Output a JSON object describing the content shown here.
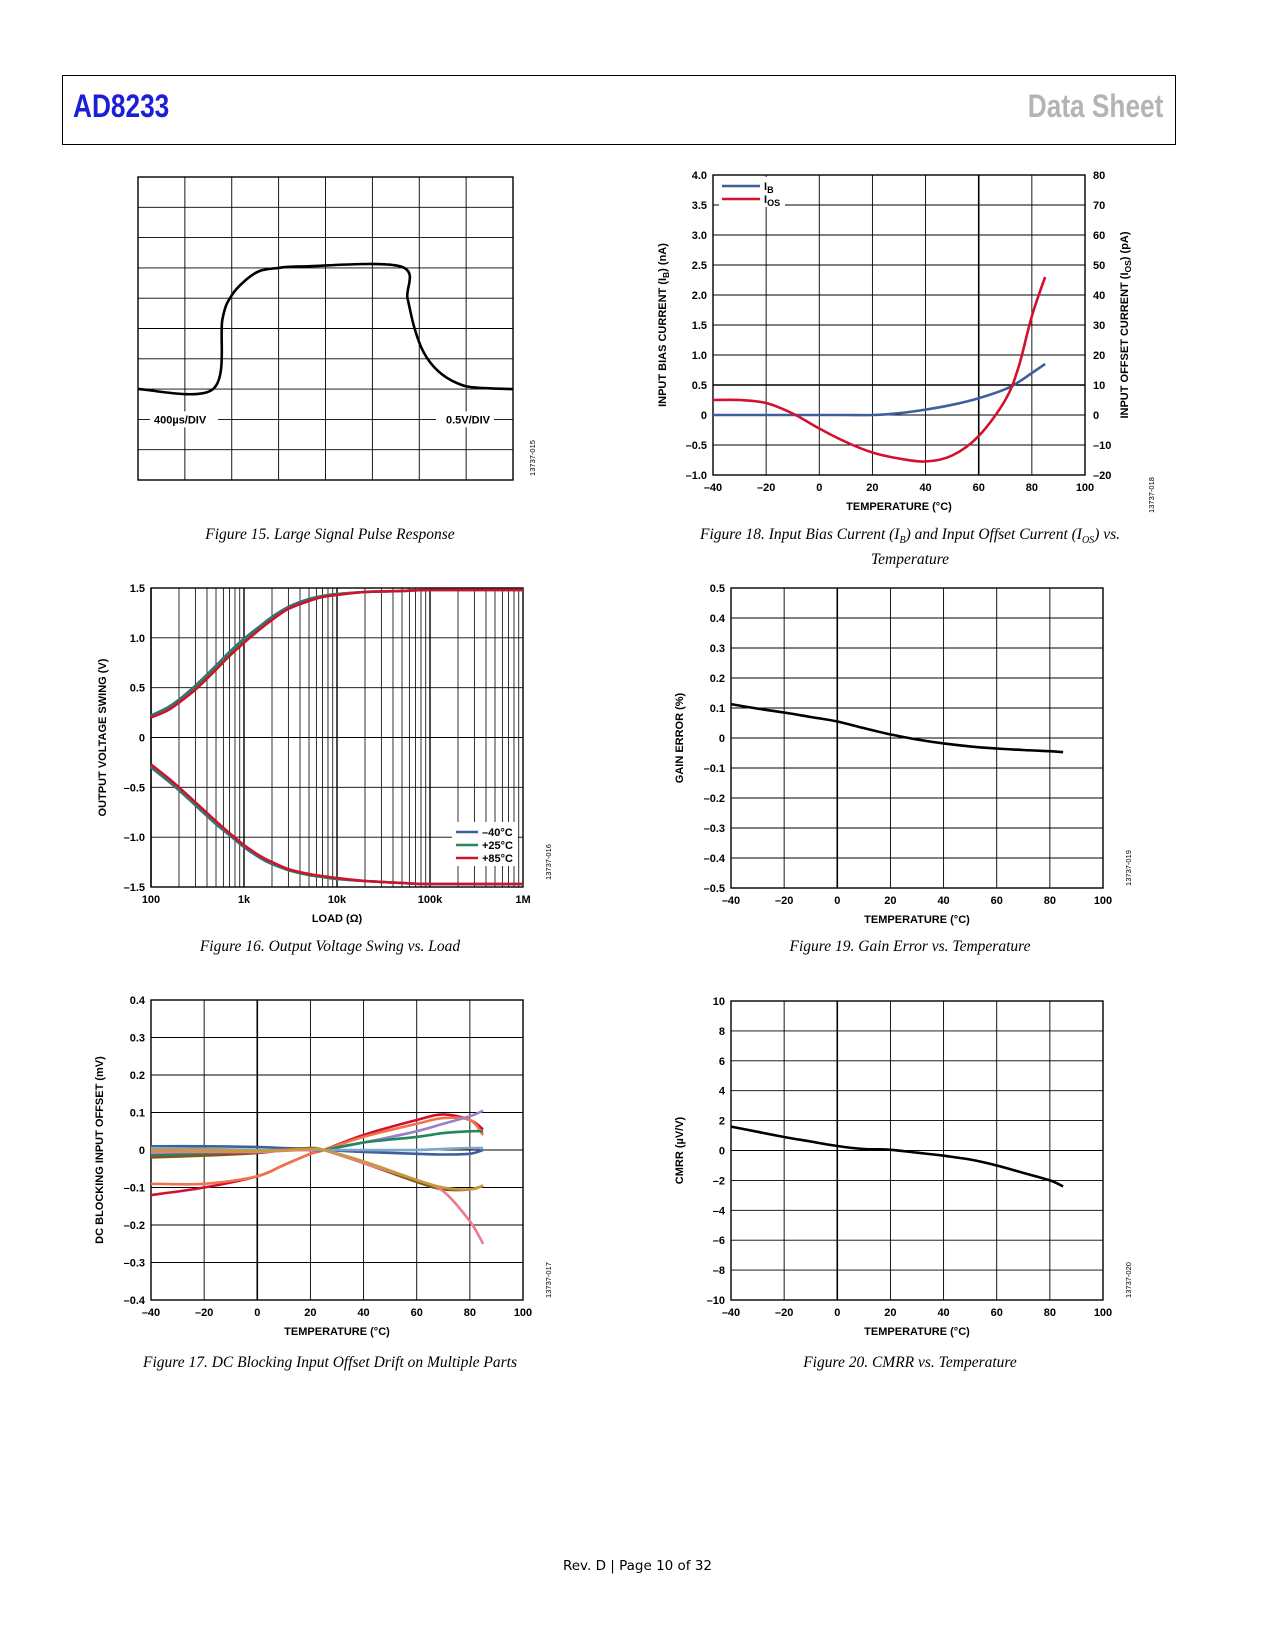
{
  "header": {
    "product": "AD8233",
    "doc_type": "Data Sheet"
  },
  "footer": {
    "text": "Rev. D | Page 10 of 32"
  },
  "figures": {
    "fig15": {
      "caption": "Figure 15. Large Signal Pulse Response",
      "label_time": "400µs/DIV",
      "label_volt": "0.5V/DIV",
      "code": "13737-015"
    },
    "fig16": {
      "caption": "Figure 16. Output Voltage Swing vs. Load",
      "code": "13737-016"
    },
    "fig17": {
      "caption": "Figure 17. DC Blocking Input Offset Drift on Multiple Parts",
      "code": "13737-017"
    },
    "fig18": {
      "caption_a": "Figure 18. Input Bias Current (I",
      "caption_b": "B",
      "caption_c": ") and Input Offset Current (I",
      "caption_d": "OS",
      "caption_e": ") vs.",
      "caption_line2": "Temperature",
      "code": "13737-018"
    },
    "fig19": {
      "caption": "Figure 19. Gain Error vs. Temperature",
      "code": "13737-019"
    },
    "fig20": {
      "caption": "Figure 20. CMRR vs. Temperature",
      "code": "13737-020"
    }
  },
  "chart_data": [
    {
      "id": "fig15",
      "type": "line",
      "title": "",
      "grid": true,
      "x_divisions": 8,
      "y_divisions": 10,
      "x_unit_per_div": "400µs/DIV",
      "y_unit_per_div": "0.5V/DIV",
      "series": [
        {
          "x": [
            0,
            1.6,
            1.8,
            2.0,
            2.3,
            2.6,
            3.0,
            3.5,
            5.6,
            5.75,
            5.9,
            6.1,
            6.4,
            6.8,
            7.2,
            8.0
          ],
          "y": [
            3.0,
            3.0,
            5.3,
            6.1,
            6.6,
            6.9,
            7.0,
            7.05,
            7.05,
            6.0,
            5.0,
            4.2,
            3.6,
            3.2,
            3.05,
            3.0
          ]
        }
      ]
    },
    {
      "id": "fig16",
      "type": "line",
      "xlabel": "LOAD (Ω)",
      "ylabel": "OUTPUT VOLTAGE SWING (V)",
      "xscale": "log",
      "xlim": [
        100,
        1000000
      ],
      "ylim": [
        -1.5,
        1.5
      ],
      "xticks": [
        100,
        1000,
        10000,
        100000,
        1000000
      ],
      "xtick_labels": [
        "100",
        "1k",
        "10k",
        "100k",
        "1M"
      ],
      "yticks": [
        -1.5,
        -1.0,
        -0.5,
        0,
        0.5,
        1.0,
        1.5
      ],
      "ytick_labels": [
        "–1.5",
        "–1.0",
        "–0.5",
        "0",
        "0.5",
        "1.0",
        "1.5"
      ],
      "legend_position": "bottom-right",
      "x": [
        100,
        150,
        200,
        300,
        500,
        700,
        1000,
        1500,
        2000,
        3000,
        5000,
        7000,
        10000,
        20000,
        50000,
        100000,
        1000000
      ],
      "series": [
        {
          "name": "–40°C",
          "color": "#3e5f9b",
          "upper": [
            0.22,
            0.3,
            0.38,
            0.52,
            0.72,
            0.86,
            0.99,
            1.12,
            1.21,
            1.31,
            1.39,
            1.42,
            1.44,
            1.46,
            1.47,
            1.48,
            1.48
          ],
          "lower": [
            -0.3,
            -0.43,
            -0.53,
            -0.68,
            -0.87,
            -0.98,
            -1.1,
            -1.21,
            -1.27,
            -1.33,
            -1.38,
            -1.4,
            -1.42,
            -1.44,
            -1.46,
            -1.47,
            -1.47
          ]
        },
        {
          "name": "+25°C",
          "color": "#23875a",
          "upper": [
            0.21,
            0.29,
            0.37,
            0.51,
            0.71,
            0.85,
            0.98,
            1.11,
            1.2,
            1.3,
            1.38,
            1.42,
            1.44,
            1.46,
            1.47,
            1.48,
            1.48
          ],
          "lower": [
            -0.29,
            -0.42,
            -0.52,
            -0.67,
            -0.86,
            -0.97,
            -1.09,
            -1.2,
            -1.26,
            -1.33,
            -1.38,
            -1.4,
            -1.42,
            -1.44,
            -1.46,
            -1.47,
            -1.47
          ]
        },
        {
          "name": "+85°C",
          "color": "#d2112e",
          "upper": [
            0.2,
            0.27,
            0.35,
            0.48,
            0.68,
            0.82,
            0.95,
            1.09,
            1.18,
            1.29,
            1.37,
            1.41,
            1.43,
            1.46,
            1.47,
            1.48,
            1.48
          ],
          "lower": [
            -0.27,
            -0.4,
            -0.5,
            -0.65,
            -0.84,
            -0.96,
            -1.08,
            -1.19,
            -1.25,
            -1.32,
            -1.37,
            -1.39,
            -1.41,
            -1.44,
            -1.46,
            -1.47,
            -1.47
          ]
        }
      ]
    },
    {
      "id": "fig17",
      "type": "line",
      "xlabel": "TEMPERATURE (°C)",
      "ylabel": "DC BLOCKING INPUT OFFSET (mV)",
      "xlim": [
        -40,
        100
      ],
      "ylim": [
        -0.4,
        0.4
      ],
      "xticks": [
        -40,
        -20,
        0,
        20,
        40,
        60,
        80,
        100
      ],
      "xtick_labels": [
        "–40",
        "–20",
        "0",
        "20",
        "40",
        "60",
        "80",
        "100"
      ],
      "yticks": [
        -0.4,
        -0.3,
        -0.2,
        -0.1,
        0,
        0.1,
        0.2,
        0.3,
        0.4
      ],
      "ytick_labels": [
        "–0.4",
        "–0.3",
        "–0.2",
        "–0.1",
        "0",
        "0.1",
        "0.2",
        "0.3",
        "0.4"
      ],
      "x": [
        -40,
        -20,
        0,
        10,
        20,
        25,
        40,
        60,
        70,
        80,
        85
      ],
      "series": [
        {
          "color": "#d2112e",
          "values": [
            -0.12,
            -0.1,
            -0.07,
            -0.04,
            -0.01,
            0.0,
            0.04,
            0.08,
            0.095,
            0.08,
            0.055
          ]
        },
        {
          "color": "#f2734b",
          "values": [
            -0.09,
            -0.09,
            -0.07,
            -0.04,
            -0.01,
            0.0,
            0.035,
            0.07,
            0.085,
            0.08,
            0.04
          ]
        },
        {
          "color": "#9d7ec9",
          "values": [
            -0.01,
            -0.01,
            -0.005,
            0.0,
            0.0,
            0.0,
            0.02,
            0.05,
            0.07,
            0.09,
            0.105
          ]
        },
        {
          "color": "#23875a",
          "values": [
            -0.015,
            -0.01,
            -0.005,
            0.0,
            0.0,
            0.0,
            0.02,
            0.035,
            0.045,
            0.05,
            0.05
          ]
        },
        {
          "color": "#3e5f9b",
          "values": [
            0.01,
            0.01,
            0.008,
            0.005,
            0.003,
            0.0,
            -0.005,
            -0.01,
            -0.012,
            -0.01,
            0.0
          ]
        },
        {
          "color": "#7ba7c9",
          "values": [
            0.005,
            0.003,
            0.0,
            0.0,
            0.0,
            0.0,
            0.0,
            0.0,
            0.003,
            0.005,
            0.005
          ]
        },
        {
          "color": "#7a5a1e",
          "values": [
            -0.02,
            -0.015,
            -0.008,
            0.0,
            0.005,
            0.0,
            -0.035,
            -0.085,
            -0.105,
            -0.105,
            -0.095
          ]
        },
        {
          "color": "#f07a8c",
          "values": [
            -0.005,
            -0.005,
            -0.005,
            -0.002,
            0.0,
            0.0,
            -0.035,
            -0.08,
            -0.11,
            -0.19,
            -0.25
          ]
        },
        {
          "color": "#c49a3c",
          "values": [
            0.0,
            0.0,
            -0.002,
            0.0,
            0.003,
            0.0,
            -0.03,
            -0.08,
            -0.1,
            -0.105,
            -0.095
          ]
        }
      ]
    },
    {
      "id": "fig18",
      "type": "line",
      "xlabel": "TEMPERATURE (°C)",
      "ylabel": "INPUT BIAS CURRENT (IB) (nA)",
      "ylabel_right": "INPUT OFFSET CURRENT (IOS) (pA)",
      "xlim": [
        -40,
        100
      ],
      "ylim": [
        -1.0,
        4.0
      ],
      "ylim_right": [
        -20,
        80
      ],
      "xticks": [
        -40,
        -20,
        0,
        20,
        40,
        60,
        80,
        100
      ],
      "xtick_labels": [
        "–40",
        "–20",
        "0",
        "20",
        "40",
        "60",
        "80",
        "100"
      ],
      "yticks": [
        -1.0,
        -0.5,
        0,
        0.5,
        1.0,
        1.5,
        2.0,
        2.5,
        3.0,
        3.5,
        4.0
      ],
      "ytick_labels": [
        "–1.0",
        "–0.5",
        "0",
        "0.5",
        "1.0",
        "1.5",
        "2.0",
        "2.5",
        "3.0",
        "3.5",
        "4.0"
      ],
      "yticks_right": [
        -20,
        -10,
        0,
        10,
        20,
        30,
        40,
        50,
        60,
        70,
        80
      ],
      "ytick_labels_right": [
        "–20",
        "–10",
        "0",
        "10",
        "20",
        "30",
        "40",
        "50",
        "60",
        "70",
        "80"
      ],
      "legend_position": "top-left",
      "x": [
        -40,
        -30,
        -20,
        -10,
        0,
        10,
        20,
        30,
        40,
        50,
        60,
        70,
        75,
        80,
        85
      ],
      "series": [
        {
          "name": "IB",
          "legend_main": "I",
          "legend_sub": "B",
          "color": "#3e5f9b",
          "axis": "left",
          "values": [
            0.0,
            0.0,
            0.0,
            0.0,
            0.0,
            0.0,
            0.0,
            0.03,
            0.09,
            0.17,
            0.28,
            0.43,
            0.55,
            0.7,
            0.85
          ]
        },
        {
          "name": "IOS",
          "legend_main": "I",
          "legend_sub": "OS",
          "color": "#d2112e",
          "axis": "right",
          "values": [
            5.0,
            5.0,
            4.0,
            0.5,
            -4.5,
            -9.0,
            -12.5,
            -14.5,
            -15.5,
            -13.5,
            -7.0,
            5.0,
            16.0,
            33.0,
            46.0
          ]
        }
      ]
    },
    {
      "id": "fig19",
      "type": "line",
      "xlabel": "TEMPERATURE (°C)",
      "ylabel": "GAIN ERROR (%)",
      "xlim": [
        -40,
        100
      ],
      "ylim": [
        -0.5,
        0.5
      ],
      "xticks": [
        -40,
        -20,
        0,
        20,
        40,
        60,
        80,
        100
      ],
      "xtick_labels": [
        "–40",
        "–20",
        "0",
        "20",
        "40",
        "60",
        "80",
        "100"
      ],
      "yticks": [
        -0.5,
        -0.4,
        -0.3,
        -0.2,
        -0.1,
        0,
        0.1,
        0.2,
        0.3,
        0.4,
        0.5
      ],
      "ytick_labels": [
        "–0.5",
        "–0.4",
        "–0.3",
        "–0.2",
        "–0.1",
        "0",
        "0.1",
        "0.2",
        "0.3",
        "0.4",
        "0.5"
      ],
      "x": [
        -40,
        -30,
        -20,
        -10,
        0,
        10,
        20,
        30,
        40,
        50,
        60,
        70,
        80,
        85
      ],
      "series": [
        {
          "color": "#000000",
          "values": [
            0.113,
            0.098,
            0.085,
            0.07,
            0.055,
            0.033,
            0.012,
            -0.005,
            -0.018,
            -0.028,
            -0.035,
            -0.04,
            -0.044,
            -0.047
          ]
        }
      ]
    },
    {
      "id": "fig20",
      "type": "line",
      "xlabel": "TEMPERATURE (°C)",
      "ylabel": "CMRR (µV/V)",
      "xlim": [
        -40,
        100
      ],
      "ylim": [
        -10,
        10
      ],
      "xticks": [
        -40,
        -20,
        0,
        20,
        40,
        60,
        80,
        100
      ],
      "xtick_labels": [
        "–40",
        "–20",
        "0",
        "20",
        "40",
        "60",
        "80",
        "100"
      ],
      "yticks": [
        -10,
        -8,
        -6,
        -4,
        -2,
        0,
        2,
        4,
        6,
        8,
        10
      ],
      "ytick_labels": [
        "–10",
        "–8",
        "–6",
        "–4",
        "–2",
        "0",
        "2",
        "4",
        "6",
        "8",
        "10"
      ],
      "x": [
        -40,
        -30,
        -20,
        -10,
        0,
        10,
        20,
        30,
        40,
        50,
        60,
        70,
        80,
        85
      ],
      "series": [
        {
          "color": "#000000",
          "values": [
            1.6,
            1.25,
            0.9,
            0.6,
            0.3,
            0.1,
            0.05,
            -0.15,
            -0.35,
            -0.6,
            -1.0,
            -1.5,
            -2.0,
            -2.4
          ]
        }
      ]
    }
  ]
}
